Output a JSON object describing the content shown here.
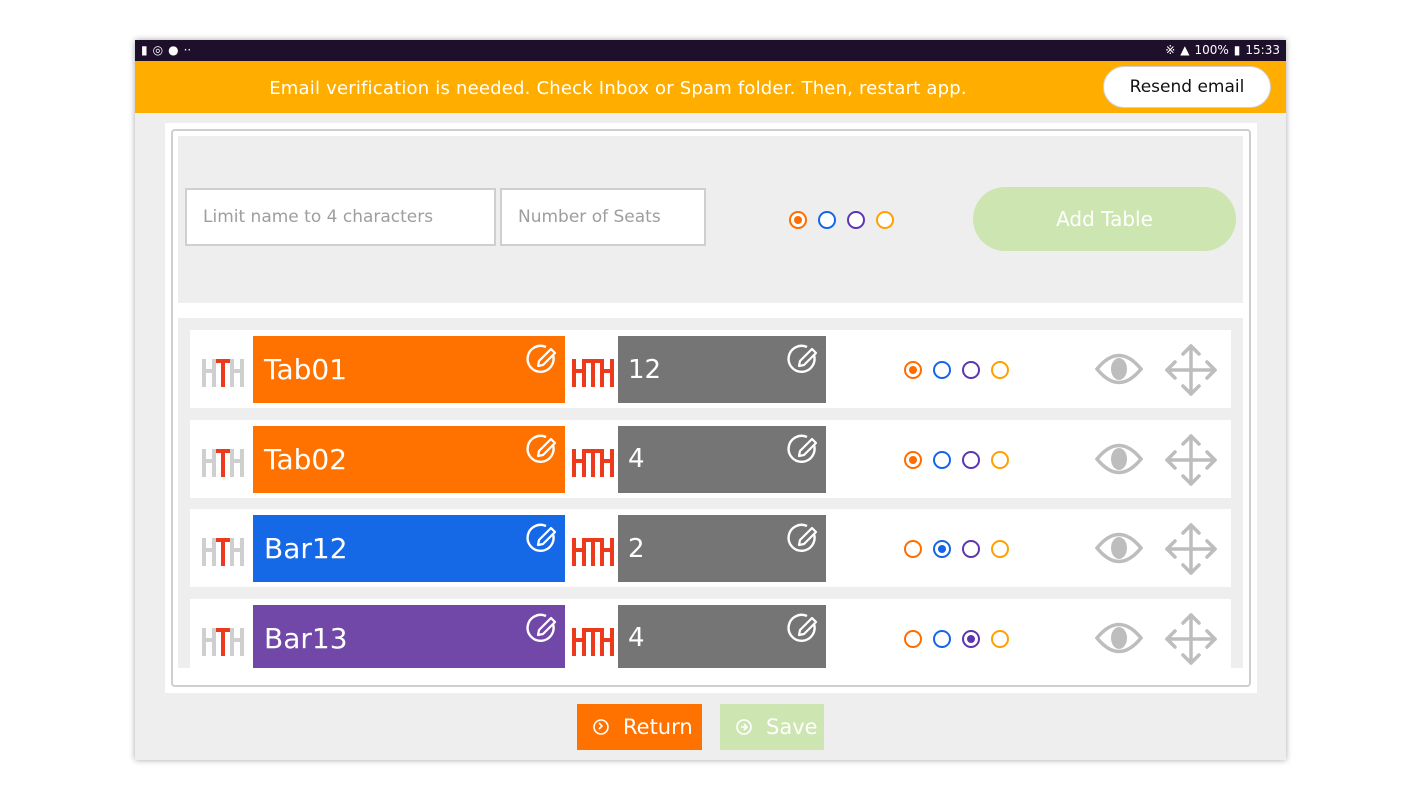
{
  "status_bar": {
    "left_icons": [
      "message-icon",
      "sync-icon",
      "keyhole-icon",
      "more-icon"
    ],
    "battery": "100%",
    "time": "15:33"
  },
  "banner": {
    "message": "Email verification is needed. Check Inbox or Spam folder. Then, restart app.",
    "resend_label": "Resend email",
    "color": "#ffae00"
  },
  "add_form": {
    "name_placeholder": "Limit name to 4 characters",
    "seats_placeholder": "Number of Seats",
    "color_options": [
      "#ff6d00",
      "#1565e8",
      "#5e35b1",
      "#ffa000"
    ],
    "selected_color_index": 0,
    "add_label": "Add Table"
  },
  "tables": [
    {
      "name": "Tab01",
      "seats": "12",
      "color": "#ff7200",
      "selected_color_index": 0
    },
    {
      "name": "Tab02",
      "seats": "4",
      "color": "#ff7200",
      "selected_color_index": 0
    },
    {
      "name": "Bar12",
      "seats": "2",
      "color": "#1568e6",
      "selected_color_index": 1
    },
    {
      "name": "Bar13",
      "seats": "4",
      "color": "#7148a8",
      "selected_color_index": 2
    }
  ],
  "footer": {
    "return_label": "Return",
    "save_label": "Save"
  }
}
